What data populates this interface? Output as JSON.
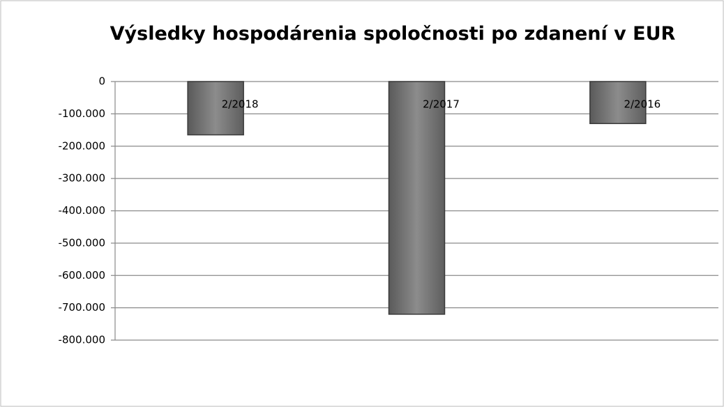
{
  "chart_data": {
    "type": "bar",
    "title": "Výsledky hospodárenia spoločnosti po zdanení v EUR",
    "categories": [
      "2/2018",
      "2/2017",
      "2/2016"
    ],
    "values": [
      -165000,
      -720000,
      -130000
    ],
    "color": "#7a7a7a",
    "ylim": [
      -800000,
      0
    ],
    "yticks": [
      0,
      {
        "value": -100000,
        "label": "-100.000"
      },
      {
        "value": -200000,
        "label": "-200.000"
      },
      {
        "value": -300000,
        "label": "-300.000"
      },
      {
        "value": -400000,
        "label": "-400.000"
      },
      {
        "value": -500000,
        "label": "-500.000"
      },
      {
        "value": -600000,
        "label": "-600.000"
      },
      {
        "value": -700000,
        "label": "-700.000"
      },
      {
        "value": -800000,
        "label": "-800.000"
      }
    ],
    "grid": true
  }
}
